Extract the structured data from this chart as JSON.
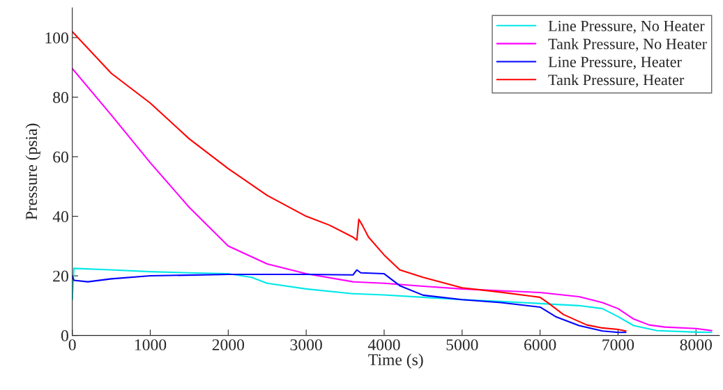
{
  "chart_data": {
    "type": "line",
    "xlabel": "Time (s)",
    "ylabel": "Pressure (psia)",
    "xlim": [
      0,
      8300
    ],
    "ylim": [
      0,
      110
    ],
    "xticks": [
      0,
      1000,
      2000,
      3000,
      4000,
      5000,
      6000,
      7000,
      8000
    ],
    "yticks": [
      0,
      20,
      40,
      60,
      80,
      100
    ],
    "grid": false,
    "legend": "top right",
    "marker": "none",
    "line_style": "solid",
    "series": [
      {
        "name": "Line Pressure, No Heater",
        "color": "#00e8e8",
        "x": [
          0,
          20,
          500,
          1000,
          1500,
          2000,
          2300,
          2500,
          3000,
          3600,
          4000,
          4500,
          5000,
          5500,
          6000,
          6500,
          6800,
          7000,
          7200,
          7500,
          8000,
          8200
        ],
        "values": [
          12,
          22.5,
          22,
          21.4,
          21,
          20.7,
          19.5,
          17.5,
          15.6,
          14,
          13.6,
          12.8,
          12,
          11.4,
          10.7,
          10,
          9,
          6.3,
          3.3,
          1.6,
          1.1,
          1
        ]
      },
      {
        "name": "Tank Pressure, No Heater",
        "color": "#ff00ff",
        "x": [
          0,
          500,
          1000,
          1500,
          2000,
          2500,
          3000,
          3600,
          4000,
          4500,
          5000,
          5500,
          6000,
          6500,
          6800,
          7000,
          7200,
          7400,
          7600,
          8000,
          8200
        ],
        "values": [
          89.6,
          74,
          58,
          43,
          30,
          24,
          20.7,
          18,
          17.5,
          16.5,
          15.6,
          15,
          14.4,
          13,
          11,
          9,
          5.5,
          3.5,
          2.8,
          2.3,
          1.6
        ]
      },
      {
        "name": "Line Pressure, Heater",
        "color": "#0000ff",
        "x": [
          0,
          20,
          200,
          500,
          1000,
          2000,
          3000,
          3600,
          3650,
          3700,
          4000,
          4200,
          4500,
          5000,
          5500,
          6000,
          6200,
          6500,
          6800,
          7000,
          7100
        ],
        "values": [
          20,
          18.5,
          18,
          19,
          20,
          20.5,
          20.5,
          20.3,
          22,
          21,
          20.7,
          16.7,
          13.5,
          12,
          11,
          9.5,
          6.3,
          3.3,
          1.5,
          1,
          1
        ]
      },
      {
        "name": "Tank Pressure, Heater",
        "color": "#ff0000",
        "x": [
          0,
          500,
          1000,
          1500,
          2000,
          2500,
          3000,
          3300,
          3600,
          3650,
          3675,
          3720,
          3800,
          4000,
          4200,
          4500,
          5000,
          5500,
          6000,
          6100,
          6300,
          6600,
          6800,
          7000,
          7100
        ],
        "values": [
          102,
          88,
          78,
          66,
          56,
          47,
          40,
          37,
          33,
          32,
          39,
          37,
          33,
          27,
          22,
          19.5,
          16,
          14.5,
          12.8,
          11,
          7,
          3.5,
          2.5,
          2,
          1.5
        ]
      }
    ]
  }
}
